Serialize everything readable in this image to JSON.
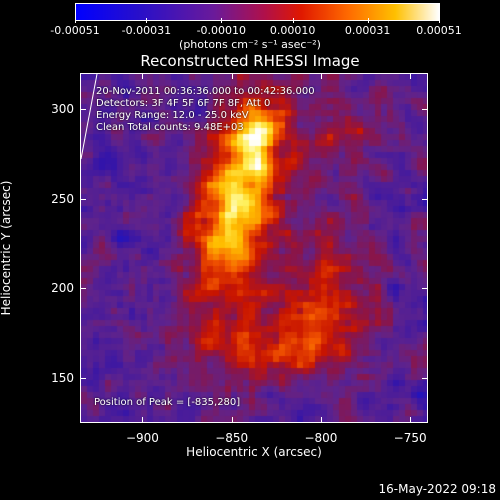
{
  "colorbar": {
    "ticks": [
      "-0.00051",
      "-0.00031",
      "-0.00010",
      "0.00010",
      "0.00031",
      "0.00051"
    ],
    "tick_values": [
      -0.00051,
      -0.00031,
      -0.0001,
      0.0001,
      0.00031,
      0.00051
    ],
    "units": "(photons cm⁻² s⁻¹ asec⁻²)"
  },
  "chart_data": {
    "type": "heatmap",
    "title": "Reconstructed RHESSI Image",
    "xlabel": "Heliocentric X (arcsec)",
    "ylabel": "Heliocentric Y (arcsec)",
    "xlim": [
      -935,
      -740
    ],
    "ylim": [
      125,
      320
    ],
    "xticks": [
      -900,
      -850,
      -800,
      -750
    ],
    "yticks": [
      150,
      200,
      250,
      300
    ],
    "xtick_labels": [
      "−900",
      "−850",
      "−800",
      "−750"
    ],
    "ytick_labels": [
      "150",
      "200",
      "250",
      "300"
    ],
    "colormap": "rhessi-hot",
    "value_range": [
      -0.00051,
      0.00051
    ],
    "annotations": [
      "20-Nov-2011 00:36:36.000 to 00:42:36.000",
      "Detectors: 3F 4F 5F 6F 7F 8F, Att 0",
      "Energy Range: 12.0 - 25.0 keV",
      "Clean     Total counts: 9.48E+03"
    ],
    "peak_label": "Position of Peak = [-835,280]",
    "peak": [
      -835,
      280
    ]
  },
  "footer": {
    "timestamp": "16-May-2022 09:18"
  }
}
